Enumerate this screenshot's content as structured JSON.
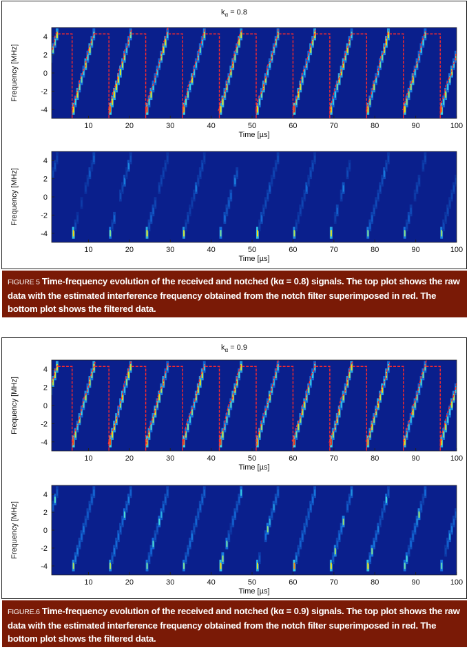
{
  "figures": [
    {
      "title": "k",
      "title_sub": "α",
      "title_rest": " = 0.8",
      "caption_label": "FIGURE 5",
      "caption_text": "Time-frequency evolution of the received and notched (kα = 0.8) signals. The top plot shows the raw data with the estimated interference frequency obtained from the notch filter superimposed in red. The bottom plot shows the filtered data."
    },
    {
      "title": "k",
      "title_sub": "α",
      "title_rest": " = 0.9",
      "caption_label": "FIGURE.6",
      "caption_text": "Time-frequency evolution of the received and notched (kα = 0.9) signals. The top plot shows the raw data with the estimated interference frequency obtained from the notch filter superimposed in red. The bottom plot shows the filtered data."
    }
  ],
  "colors": {
    "caption_bg": "#7a1a06",
    "background": "#0a1f8c",
    "notch": "#ff2a2a"
  },
  "chart_data": [
    {
      "type": "heatmap",
      "figure": 5,
      "panel": "raw",
      "xlabel": "Time [µs]",
      "ylabel": "Frequency [MHz]",
      "xlim": [
        1,
        100
      ],
      "ylim": [
        -5,
        5
      ],
      "xticks": [
        10,
        20,
        30,
        40,
        50,
        60,
        70,
        80,
        90,
        100
      ],
      "yticks": [
        -4,
        -2,
        0,
        2,
        4
      ],
      "sweep_starts": [
        -3,
        6,
        15,
        24,
        33,
        42,
        51,
        60,
        69,
        78,
        87,
        96
      ],
      "sweep_duration": 5.5,
      "f_start": -4,
      "f_end": 4.2,
      "notch_overlay": true,
      "residual": 1.0
    },
    {
      "type": "heatmap",
      "figure": 5,
      "panel": "filtered",
      "xlabel": "Time [µs]",
      "ylabel": "Frequency [MHz]",
      "xlim": [
        1,
        100
      ],
      "ylim": [
        -5,
        5
      ],
      "xticks": [
        10,
        20,
        30,
        40,
        50,
        60,
        70,
        80,
        90,
        100
      ],
      "yticks": [
        -4,
        -2,
        0,
        2,
        4
      ],
      "sweep_starts": [
        -3,
        6,
        15,
        24,
        33,
        42,
        51,
        60,
        69,
        78,
        87,
        96
      ],
      "sweep_duration": 5.5,
      "f_start": -4,
      "f_end": 4.2,
      "notch_overlay": false,
      "residual": 0.25
    },
    {
      "type": "heatmap",
      "figure": 6,
      "panel": "raw",
      "xlabel": "Time [µs]",
      "ylabel": "Frequency [MHz]",
      "xlim": [
        1,
        100
      ],
      "ylim": [
        -5,
        5
      ],
      "xticks": [
        10,
        20,
        30,
        40,
        50,
        60,
        70,
        80,
        90,
        100
      ],
      "yticks": [
        -4,
        -2,
        0,
        2,
        4
      ],
      "sweep_starts": [
        -3,
        6,
        15,
        24,
        33,
        42,
        51,
        60,
        69,
        78,
        87,
        96
      ],
      "sweep_duration": 5.5,
      "f_start": -4,
      "f_end": 4.2,
      "notch_overlay": true,
      "residual": 1.0
    },
    {
      "type": "heatmap",
      "figure": 6,
      "panel": "filtered",
      "xlabel": "Time [µs]",
      "ylabel": "Frequency [MHz]",
      "xlim": [
        1,
        100
      ],
      "ylim": [
        -5,
        5
      ],
      "xticks": [
        10,
        20,
        30,
        40,
        50,
        60,
        70,
        80,
        90,
        100
      ],
      "yticks": [
        -4,
        -2,
        0,
        2,
        4
      ],
      "sweep_starts": [
        -3,
        6,
        15,
        24,
        33,
        42,
        51,
        60,
        69,
        78,
        87,
        96
      ],
      "sweep_duration": 5.5,
      "f_start": -4,
      "f_end": 4.2,
      "notch_overlay": false,
      "residual": 0.45
    }
  ]
}
